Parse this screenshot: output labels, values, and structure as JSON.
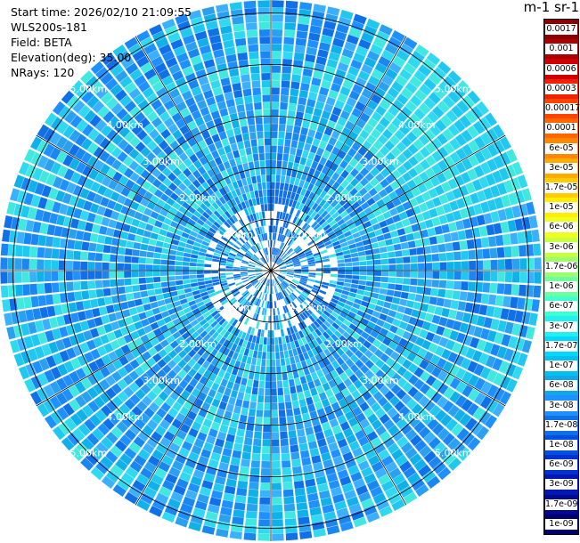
{
  "header": {
    "start_time": "Start time: 2026/02/10 21:09:55",
    "instrument": "WLS200s-181",
    "field": "Field: BETA",
    "elevation": "Elevation(deg): 35.00",
    "nrays": "NRays: 120"
  },
  "colorbar": {
    "title": "m-1 sr-1",
    "labels": [
      "0.0017",
      "0.001",
      "0.0006",
      "0.0003",
      "0.00017",
      "0.0001",
      "6e-05",
      "3e-05",
      "1.7e-05",
      "1e-05",
      "6e-06",
      "3e-06",
      "1.7e-06",
      "1e-06",
      "6e-07",
      "3e-07",
      "1.7e-07",
      "1e-07",
      "6e-08",
      "3e-08",
      "1.7e-08",
      "1e-08",
      "6e-09",
      "3e-09",
      "1.7e-09",
      "1e-09"
    ],
    "colors": [
      "#8b0000",
      "#aa0000",
      "#d00000",
      "#f02000",
      "#ff4400",
      "#ff6600",
      "#ff8800",
      "#ffaa00",
      "#ffcc00",
      "#ffee00",
      "#eeff20",
      "#c8ff40",
      "#9cff70",
      "#70ffa0",
      "#40ffd0",
      "#20f0f0",
      "#00d8ff",
      "#00c0f0",
      "#10a8e8",
      "#1e90ff",
      "#1070e8",
      "#0050e0",
      "#0030d0",
      "#0018b0",
      "#000a90",
      "#000070"
    ]
  },
  "chart_data": {
    "type": "ppi",
    "title": "",
    "nrays": 120,
    "range_labels_km": [
      "1.00km",
      "2.00km",
      "3.00km",
      "4.00km",
      "5.00km"
    ],
    "range_rings_km": [
      1,
      2,
      3,
      4,
      5
    ],
    "max_range_km": 5.25,
    "field": "BETA",
    "elevation_deg": 35.0,
    "units": "m-1 sr-1"
  }
}
